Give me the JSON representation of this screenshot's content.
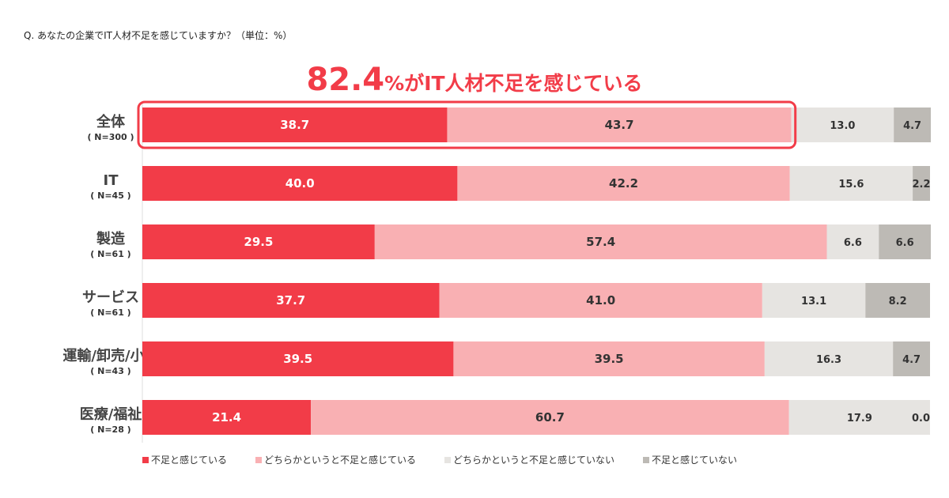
{
  "question": "Q. あなたの企業でIT人材不足を感じていますか？（単位：%）",
  "headline": {
    "value": "82.4",
    "suffix": "%がIT人材不足を感じている"
  },
  "chart_data": {
    "type": "bar",
    "orientation": "horizontal",
    "stacked": true,
    "xlim": [
      0,
      100
    ],
    "categories": [
      "全体",
      "IT",
      "製造",
      "サービス",
      "運輸/卸売/小売",
      "医療/福祉"
    ],
    "sample_sizes": [
      "( N=300 )",
      "( N=45 )",
      "( N=61 )",
      "( N=61 )",
      "( N=43 )",
      "( N=28 )"
    ],
    "series": [
      {
        "name": "不足と感じている",
        "color": "#f23c48",
        "values": [
          38.7,
          40.0,
          29.5,
          37.7,
          39.5,
          21.4
        ]
      },
      {
        "name": "どちらかというと不足と感じている",
        "color": "#f9b0b3",
        "values": [
          43.7,
          42.2,
          57.4,
          41.0,
          39.5,
          60.7
        ]
      },
      {
        "name": "どちらかというと不足と感じていない",
        "color": "#e6e4e1",
        "values": [
          13.0,
          15.6,
          6.6,
          13.1,
          16.3,
          17.9
        ]
      },
      {
        "name": "不足と感じていない",
        "color": "#bdbab5",
        "values": [
          4.7,
          2.2,
          6.6,
          8.2,
          4.7,
          0.0
        ]
      }
    ],
    "highlight": {
      "category": "全体",
      "series": [
        0,
        1
      ],
      "color": "#f23c48"
    },
    "legend": "bottom"
  }
}
